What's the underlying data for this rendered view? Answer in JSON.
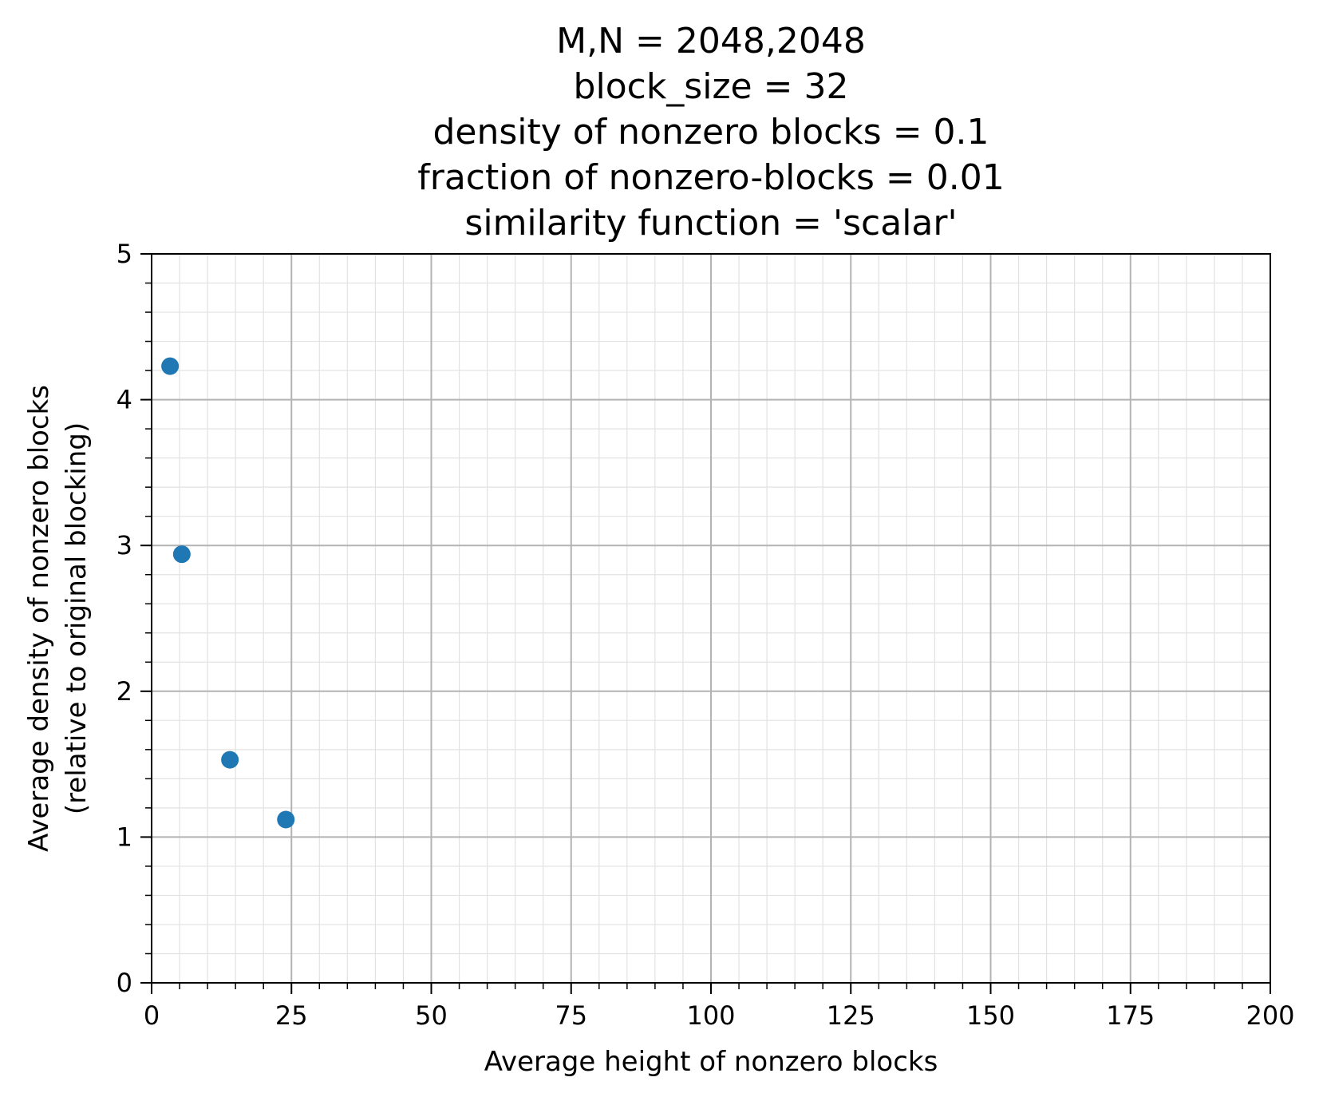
{
  "chart_data": {
    "type": "scatter",
    "title_lines": [
      "M,N = 2048,2048",
      "block_size = 32",
      "density of nonzero blocks = 0.1",
      "fraction of nonzero-blocks = 0.01",
      "similarity function = 'scalar'"
    ],
    "xlabel": "Average height of nonzero blocks",
    "ylabel_lines": [
      "Average density of nonzero blocks",
      "(relative to original blocking)"
    ],
    "xlim": [
      0,
      200
    ],
    "ylim": [
      0,
      5
    ],
    "x_ticks": [
      0,
      25,
      50,
      75,
      100,
      125,
      150,
      175,
      200
    ],
    "y_ticks": [
      0,
      1,
      2,
      3,
      4,
      5
    ],
    "x_minor_step": 5,
    "y_minor_step": 0.2,
    "grid": "major and minor",
    "series": [
      {
        "color": "#1f77b4",
        "points": [
          {
            "x": 3.3,
            "y": 4.23
          },
          {
            "x": 5.4,
            "y": 2.94
          },
          {
            "x": 14.0,
            "y": 1.53
          },
          {
            "x": 24.0,
            "y": 1.12
          }
        ]
      }
    ]
  }
}
